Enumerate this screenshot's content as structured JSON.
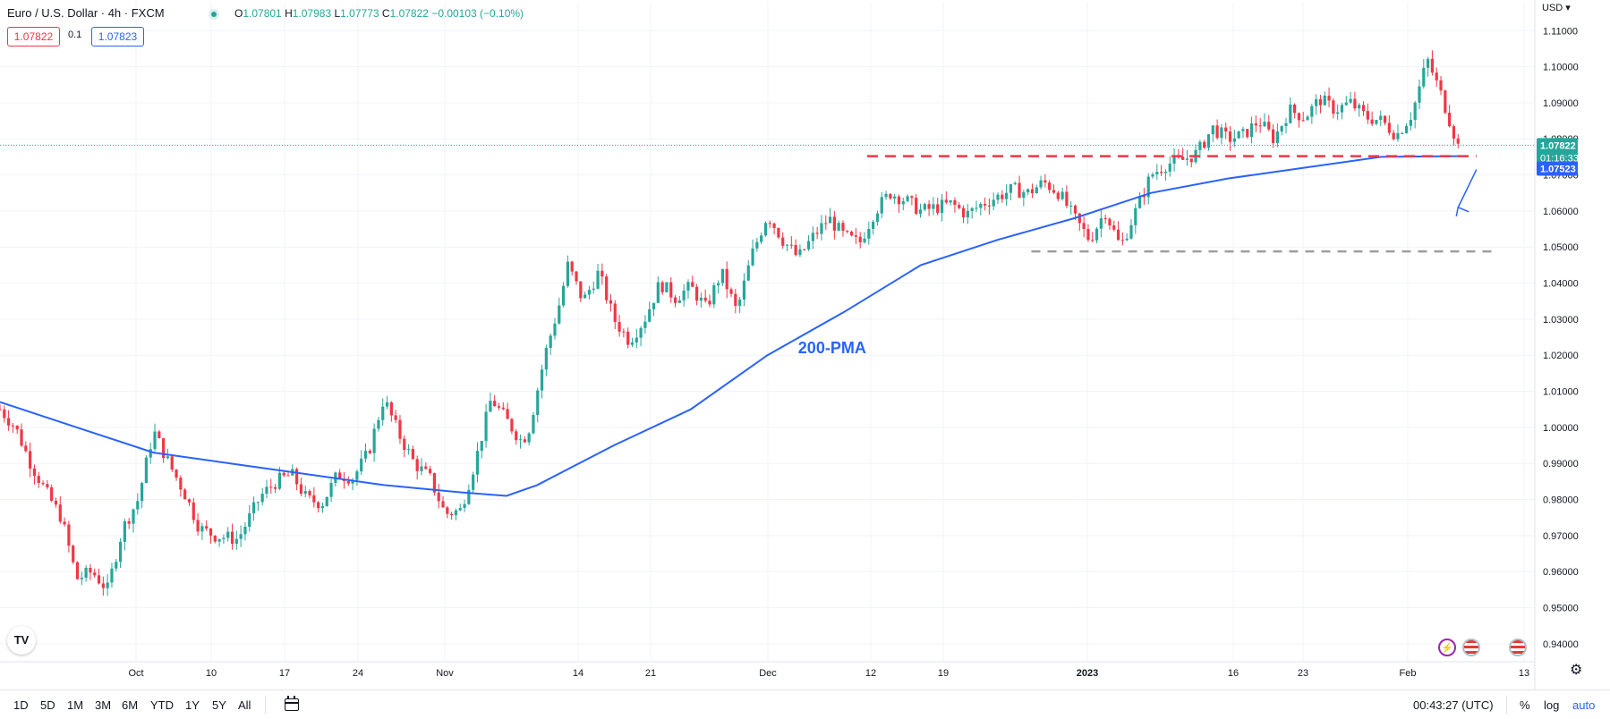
{
  "header": {
    "symbol_title": "Euro / U.S. Dollar · 4h · FXCM",
    "ohlc": {
      "o_label": "O",
      "o": "1.07801",
      "h_label": "H",
      "h": "1.07983",
      "l_label": "L",
      "l": "1.07773",
      "c_label": "C",
      "c": "1.07822",
      "change": "−0.00103 (−0.10%)"
    },
    "bid": "1.07822",
    "spread": "0.1",
    "ask": "1.07823",
    "currency": "USD"
  },
  "chart_data": {
    "type": "line",
    "y_axis": {
      "min": 0.935,
      "max": 1.118,
      "ticks": [
        "1.11000",
        "1.10000",
        "1.09000",
        "1.08000",
        "1.07000",
        "1.06000",
        "1.05000",
        "1.04000",
        "1.03000",
        "1.02000",
        "1.01000",
        "1.00000",
        "0.99000",
        "0.98000",
        "0.97000",
        "0.96000",
        "0.95000",
        "0.94000"
      ],
      "tick_values": [
        1.11,
        1.1,
        1.09,
        1.08,
        1.07,
        1.06,
        1.05,
        1.04,
        1.03,
        1.02,
        1.01,
        1.0,
        0.99,
        0.98,
        0.97,
        0.96,
        0.95,
        0.94
      ]
    },
    "x_axis": {
      "labels": [
        "Oct",
        "10",
        "17",
        "24",
        "Nov",
        "14",
        "21",
        "Dec",
        "12",
        "19",
        "2023",
        "16",
        "23",
        "Feb",
        "13"
      ],
      "bold": [
        "2023"
      ]
    },
    "grid": true,
    "price_path": [
      [
        0,
        1.005
      ],
      [
        0.01,
        1.0
      ],
      [
        0.02,
        0.99
      ],
      [
        0.03,
        0.982
      ],
      [
        0.04,
        0.975
      ],
      [
        0.05,
        0.958
      ],
      [
        0.06,
        0.96
      ],
      [
        0.07,
        0.955
      ],
      [
        0.08,
        0.972
      ],
      [
        0.09,
        0.98
      ],
      [
        0.1,
        0.999
      ],
      [
        0.11,
        0.99
      ],
      [
        0.12,
        0.982
      ],
      [
        0.13,
        0.972
      ],
      [
        0.14,
        0.97
      ],
      [
        0.155,
        0.969
      ],
      [
        0.17,
        0.981
      ],
      [
        0.18,
        0.985
      ],
      [
        0.19,
        0.987
      ],
      [
        0.2,
        0.98
      ],
      [
        0.21,
        0.979
      ],
      [
        0.22,
        0.987
      ],
      [
        0.23,
        0.986
      ],
      [
        0.24,
        0.993
      ],
      [
        0.25,
        1.008
      ],
      [
        0.26,
        0.998
      ],
      [
        0.27,
        0.99
      ],
      [
        0.28,
        0.986
      ],
      [
        0.29,
        0.976
      ],
      [
        0.3,
        0.977
      ],
      [
        0.31,
        0.991
      ],
      [
        0.32,
        1.008
      ],
      [
        0.33,
        1.002
      ],
      [
        0.34,
        0.996
      ],
      [
        0.345,
        1.0
      ],
      [
        0.355,
        1.02
      ],
      [
        0.365,
        1.035
      ],
      [
        0.37,
        1.045
      ],
      [
        0.38,
        1.035
      ],
      [
        0.39,
        1.043
      ],
      [
        0.4,
        1.03
      ],
      [
        0.41,
        1.024
      ],
      [
        0.42,
        1.03
      ],
      [
        0.43,
        1.04
      ],
      [
        0.44,
        1.036
      ],
      [
        0.45,
        1.039
      ],
      [
        0.46,
        1.033
      ],
      [
        0.47,
        1.043
      ],
      [
        0.48,
        1.032
      ],
      [
        0.49,
        1.048
      ],
      [
        0.5,
        1.059
      ],
      [
        0.51,
        1.052
      ],
      [
        0.52,
        1.047
      ],
      [
        0.53,
        1.053
      ],
      [
        0.54,
        1.058
      ],
      [
        0.55,
        1.053
      ],
      [
        0.56,
        1.051
      ],
      [
        0.57,
        1.06
      ],
      [
        0.58,
        1.065
      ],
      [
        0.59,
        1.063
      ],
      [
        0.6,
        1.06
      ],
      [
        0.61,
        1.061
      ],
      [
        0.62,
        1.062
      ],
      [
        0.63,
        1.059
      ],
      [
        0.64,
        1.062
      ],
      [
        0.65,
        1.064
      ],
      [
        0.66,
        1.066
      ],
      [
        0.67,
        1.065
      ],
      [
        0.68,
        1.068
      ],
      [
        0.69,
        1.065
      ],
      [
        0.7,
        1.058
      ],
      [
        0.71,
        1.052
      ],
      [
        0.72,
        1.06
      ],
      [
        0.73,
        1.05
      ],
      [
        0.74,
        1.06
      ],
      [
        0.75,
        1.07
      ],
      [
        0.76,
        1.073
      ],
      [
        0.77,
        1.074
      ],
      [
        0.78,
        1.076
      ],
      [
        0.79,
        1.083
      ],
      [
        0.8,
        1.08
      ],
      [
        0.81,
        1.081
      ],
      [
        0.82,
        1.085
      ],
      [
        0.83,
        1.08
      ],
      [
        0.84,
        1.088
      ],
      [
        0.85,
        1.086
      ],
      [
        0.86,
        1.091
      ],
      [
        0.87,
        1.088
      ],
      [
        0.88,
        1.09
      ],
      [
        0.89,
        1.086
      ],
      [
        0.9,
        1.085
      ],
      [
        0.91,
        1.081
      ],
      [
        0.92,
        1.087
      ],
      [
        0.93,
        1.102
      ],
      [
        0.94,
        1.091
      ],
      [
        0.95,
        1.078
      ]
    ],
    "pma_path": [
      [
        0,
        1.007
      ],
      [
        0.05,
        1.0
      ],
      [
        0.1,
        0.993
      ],
      [
        0.15,
        0.99
      ],
      [
        0.2,
        0.987
      ],
      [
        0.25,
        0.984
      ],
      [
        0.3,
        0.982
      ],
      [
        0.33,
        0.981
      ],
      [
        0.35,
        0.984
      ],
      [
        0.4,
        0.995
      ],
      [
        0.45,
        1.005
      ],
      [
        0.5,
        1.02
      ],
      [
        0.55,
        1.032
      ],
      [
        0.6,
        1.045
      ],
      [
        0.65,
        1.052
      ],
      [
        0.7,
        1.058
      ],
      [
        0.75,
        1.065
      ],
      [
        0.8,
        1.069
      ],
      [
        0.85,
        1.072
      ],
      [
        0.9,
        1.075
      ],
      [
        0.95,
        1.0752
      ]
    ],
    "resistance_level": 1.0752,
    "support_level": 1.0488,
    "current_price": "1.07822",
    "countdown": "01:16:33",
    "pma_value": "1.07523",
    "annotation": "200-PMA",
    "colors": {
      "up": "#26a69a",
      "down": "#f23645",
      "pma": "#2962ff",
      "resistance": "#f23645",
      "support": "#9e9e9e",
      "grid": "#f0f3fa"
    }
  },
  "toolbar": {
    "timeframes": [
      "1D",
      "5D",
      "1M",
      "3M",
      "6M",
      "YTD",
      "1Y",
      "5Y",
      "All"
    ],
    "clock": "00:43:27 (UTC)",
    "percent": "%",
    "log": "log",
    "auto": "auto"
  },
  "icons": {
    "logo": "tradingview-logo-icon",
    "calendar": "calendar-range-icon",
    "settings": "gear-icon",
    "event1": "lightning-event-icon",
    "event2": "us-flag-event-icon"
  }
}
